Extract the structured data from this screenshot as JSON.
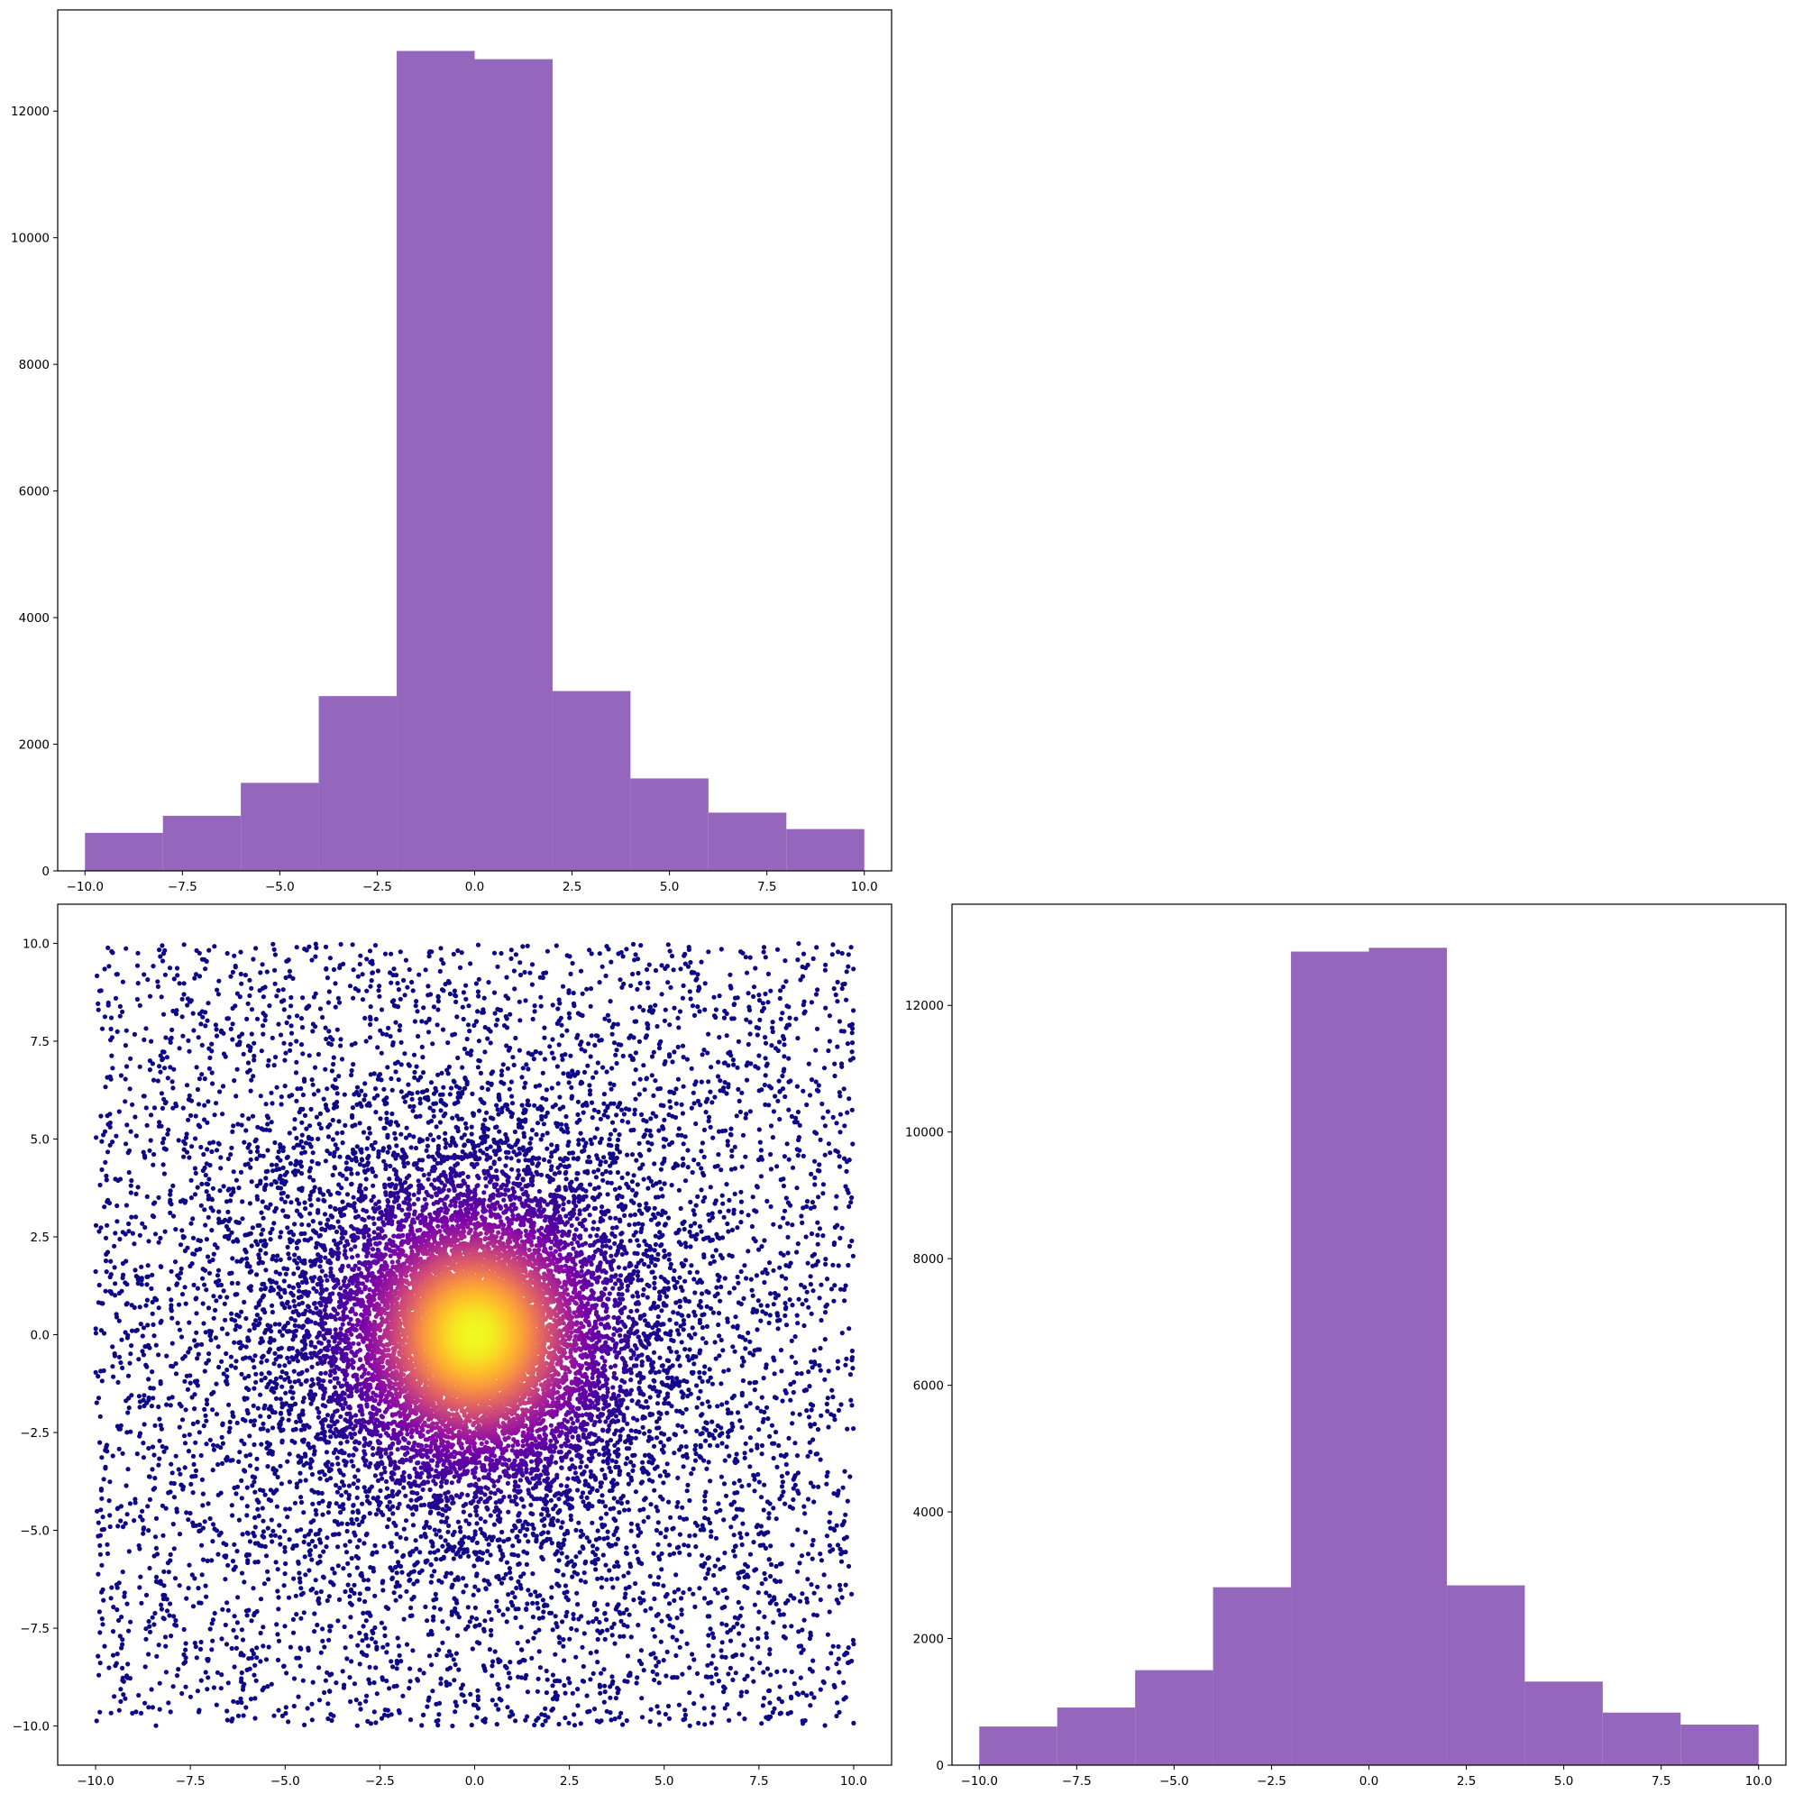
{
  "figure": {
    "background": "#ffffff"
  },
  "chart_data": [
    {
      "id": "top-left",
      "type": "bar",
      "subtype": "histogram",
      "bin_edges": [
        -10,
        -8,
        -6,
        -4,
        -2,
        0,
        2,
        4,
        6,
        8,
        10
      ],
      "values": [
        600,
        870,
        1390,
        2760,
        12950,
        12820,
        2840,
        1460,
        920,
        660
      ],
      "color": "#9467bd",
      "xlim": [
        -10.7,
        10.7
      ],
      "ylim": [
        0,
        13598
      ],
      "xticks": [
        -10.0,
        -7.5,
        -5.0,
        -2.5,
        0.0,
        2.5,
        5.0,
        7.5,
        10.0
      ],
      "xtick_labels": [
        "−10.0",
        "−7.5",
        "−5.0",
        "−2.5",
        "0.0",
        "2.5",
        "5.0",
        "7.5",
        "10.0"
      ],
      "yticks": [
        0,
        2000,
        4000,
        6000,
        8000,
        10000,
        12000
      ],
      "ytick_labels": [
        "0",
        "2000",
        "4000",
        "6000",
        "8000",
        "10000",
        "12000"
      ],
      "grid": false
    },
    {
      "id": "bottom-left",
      "type": "scatter",
      "description_of_data": "uniform points on [-10,10] x [-10,10] with dense concentration near origin; color encodes density",
      "x_range": [
        -10,
        10
      ],
      "y_range": [
        -10,
        10
      ],
      "colormap": "plasma",
      "colormap_low": "#0d0887",
      "colormap_mid": "#9c179e",
      "colormap_high": "#f0f921",
      "center": [
        0,
        0
      ],
      "xlim": [
        -11,
        11
      ],
      "ylim": [
        -11,
        11
      ],
      "xticks": [
        -10.0,
        -7.5,
        -5.0,
        -2.5,
        0.0,
        2.5,
        5.0,
        7.5,
        10.0
      ],
      "xtick_labels": [
        "−10.0",
        "−7.5",
        "−5.0",
        "−2.5",
        "0.0",
        "2.5",
        "5.0",
        "7.5",
        "10.0"
      ],
      "yticks": [
        10.0,
        7.5,
        5.0,
        2.5,
        0.0,
        -2.5,
        -5.0,
        -7.5,
        -10.0
      ],
      "ytick_labels": [
        "10.0",
        "7.5",
        "5.0",
        "2.5",
        "0.0",
        "−2.5",
        "−5.0",
        "−7.5",
        "−10.0"
      ],
      "grid": false
    },
    {
      "id": "bottom-right",
      "type": "bar",
      "subtype": "histogram",
      "bin_edges": [
        -10,
        -8,
        -6,
        -4,
        -2,
        0,
        2,
        4,
        6,
        8,
        10
      ],
      "values": [
        610,
        910,
        1500,
        2810,
        12850,
        12910,
        2840,
        1320,
        830,
        640
      ],
      "color": "#9467bd",
      "xlim": [
        -10.7,
        10.7
      ],
      "ylim": [
        0,
        13598
      ],
      "xticks": [
        -10.0,
        -7.5,
        -5.0,
        -2.5,
        0.0,
        2.5,
        5.0,
        7.5,
        10.0
      ],
      "xtick_labels": [
        "−10.0",
        "−7.5",
        "−5.0",
        "−2.5",
        "0.0",
        "2.5",
        "5.0",
        "7.5",
        "10.0"
      ],
      "yticks": [
        0,
        2000,
        4000,
        6000,
        8000,
        10000,
        12000
      ],
      "ytick_labels": [
        "0",
        "2000",
        "4000",
        "6000",
        "8000",
        "10000",
        "12000"
      ],
      "grid": false
    }
  ]
}
